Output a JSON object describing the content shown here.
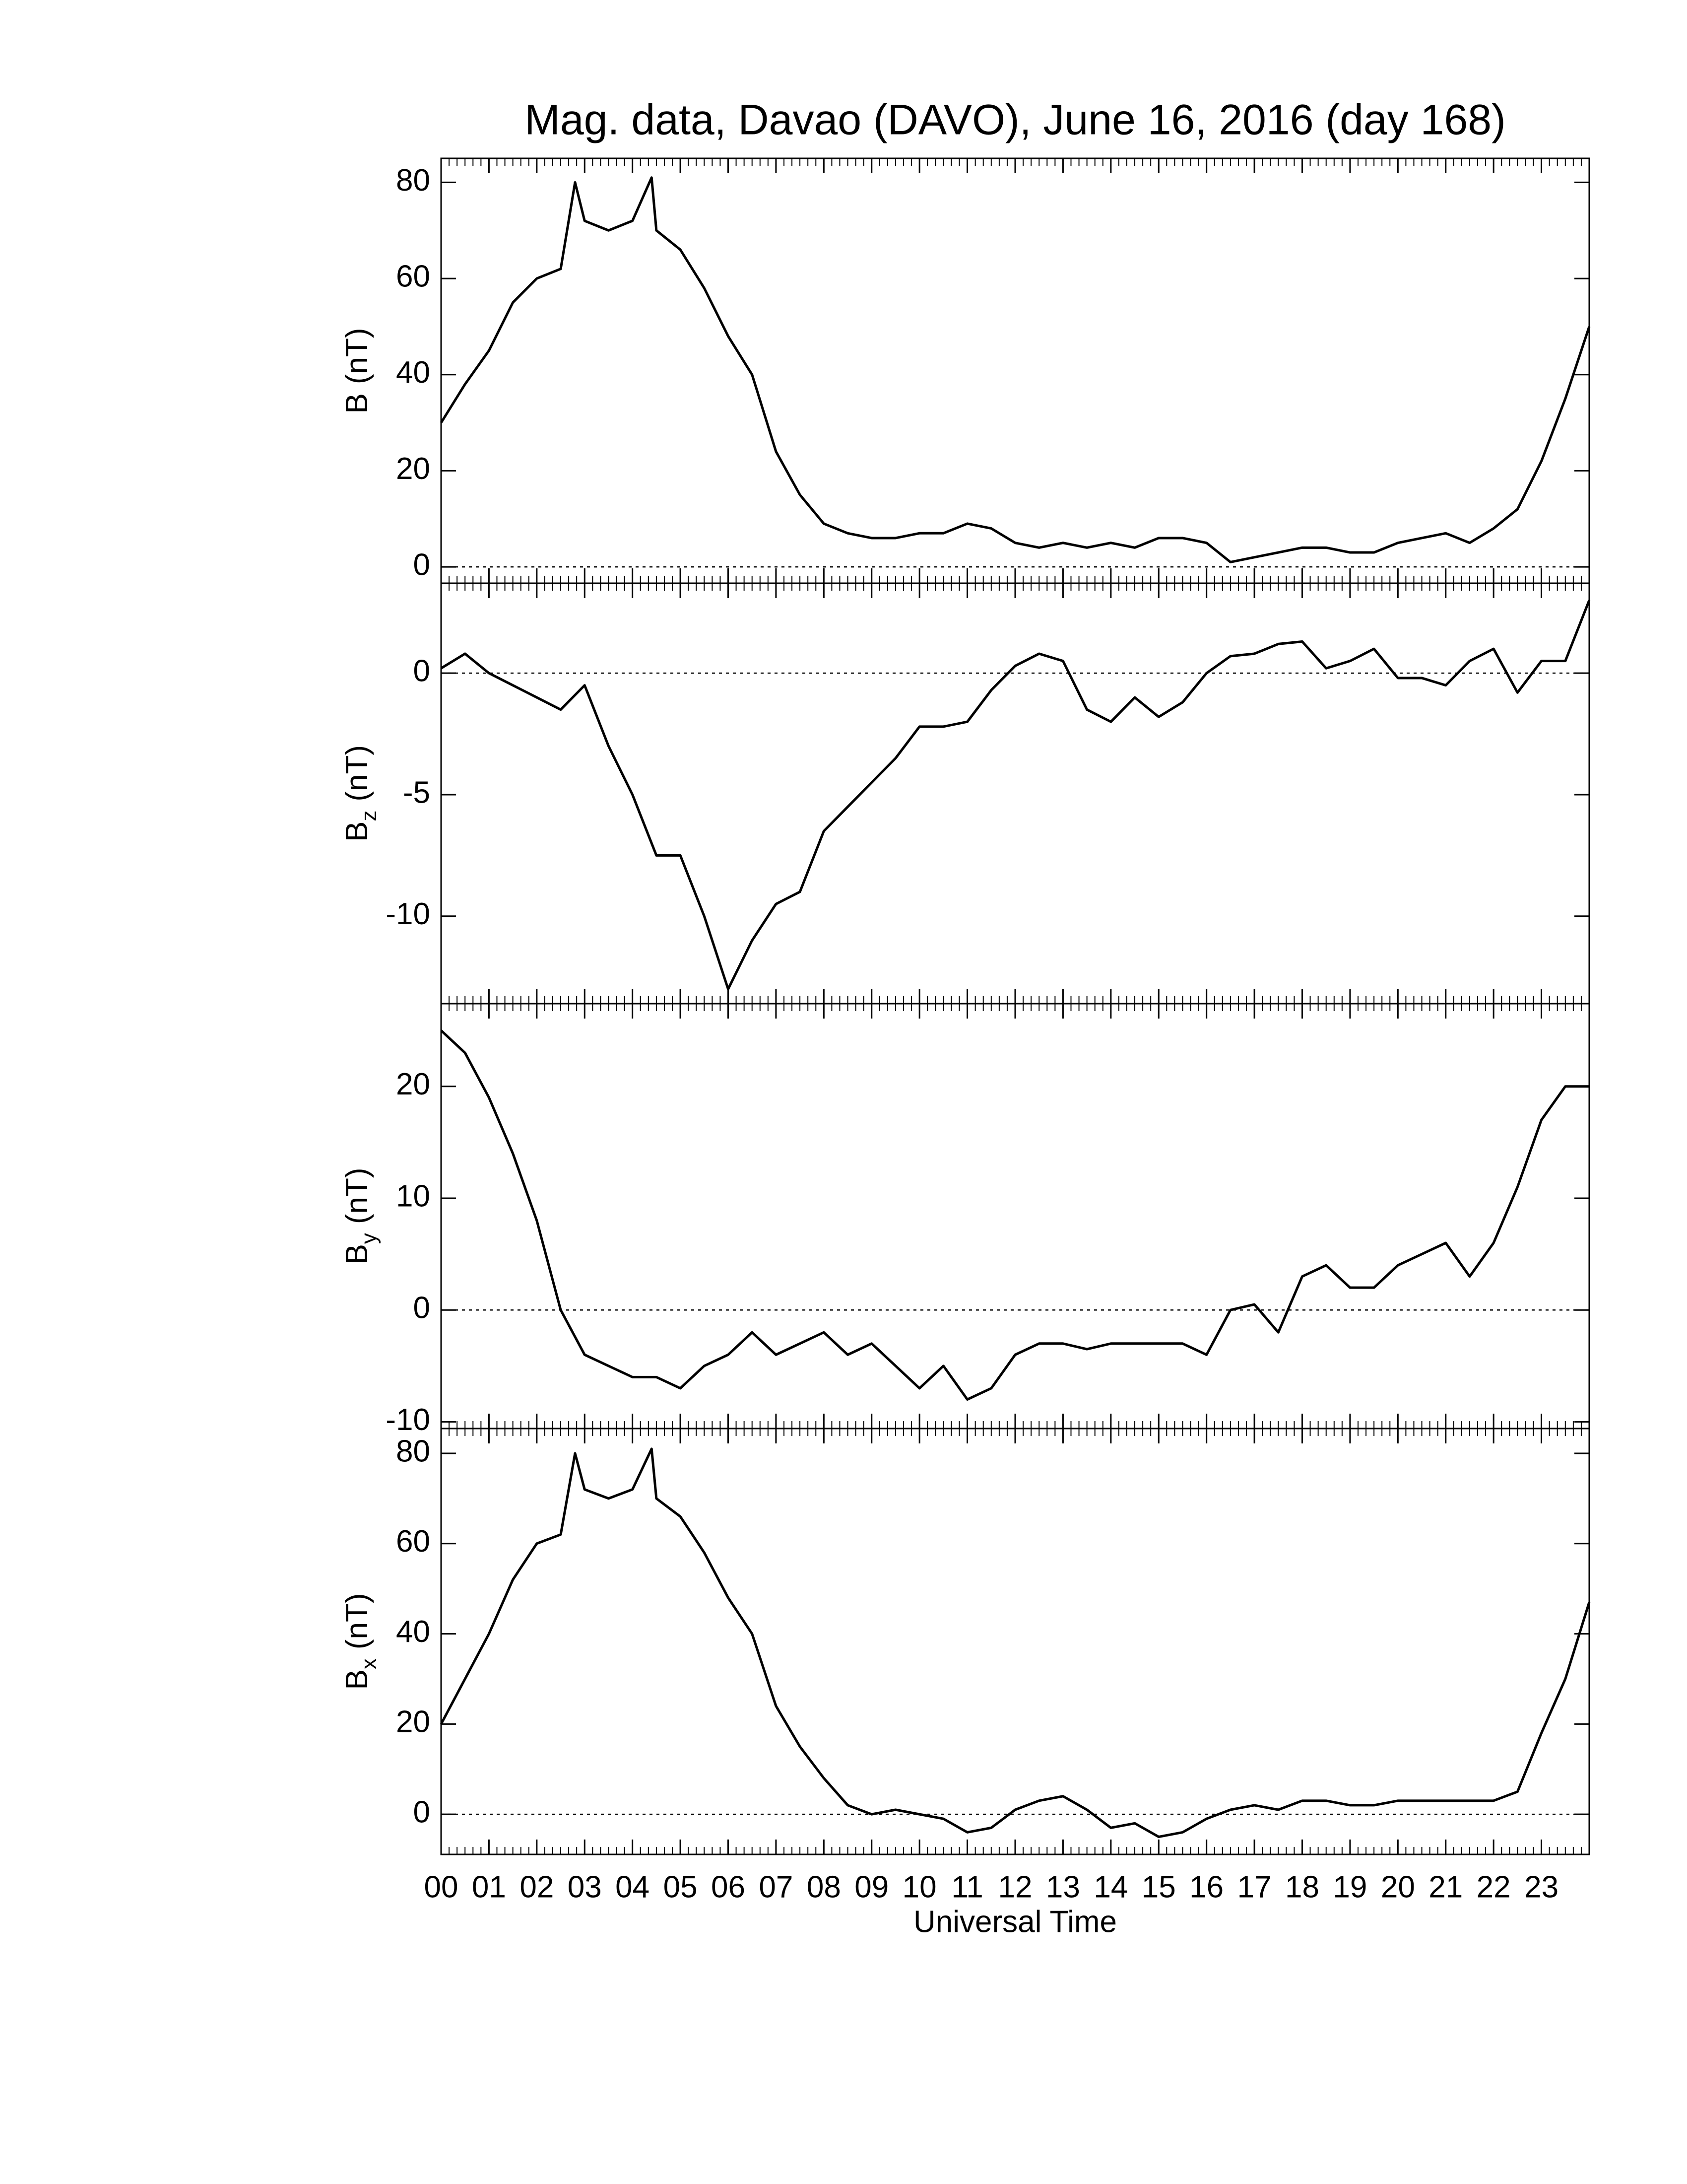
{
  "chart_data": [
    {
      "type": "line",
      "title": "Mag. data, Davao (DAVO), June 16, 2016 (day 168)",
      "ylabel": "B",
      "ylabel_unit": "(nT)",
      "color": "#000000",
      "refline": 0,
      "xlim": [
        0,
        24
      ],
      "ylim": [
        -3.4,
        85
      ],
      "yticks": [
        0,
        20,
        40,
        60,
        80
      ],
      "x": [
        0,
        0.5,
        1,
        1.5,
        2,
        2.5,
        2.8,
        3,
        3.5,
        4,
        4.4,
        4.5,
        5,
        5.5,
        6,
        6.5,
        7,
        7.5,
        8,
        8.5,
        9,
        9.5,
        10,
        10.5,
        11,
        11.5,
        12,
        12.5,
        13,
        13.5,
        14,
        14.5,
        15,
        15.5,
        16,
        16.5,
        17,
        17.5,
        18,
        18.5,
        19,
        19.5,
        20,
        20.5,
        21,
        21.5,
        22,
        22.5,
        23,
        23.5,
        24
      ],
      "values": [
        30,
        38,
        45,
        55,
        60,
        62,
        80,
        72,
        70,
        72,
        81,
        70,
        66,
        58,
        48,
        40,
        24,
        15,
        9,
        7,
        6,
        6,
        7,
        7,
        9,
        8,
        5,
        4,
        5,
        4,
        5,
        4,
        6,
        6,
        5,
        1,
        2,
        3,
        4,
        4,
        3,
        3,
        5,
        6,
        7,
        5,
        8,
        12,
        22,
        35,
        50
      ]
    },
    {
      "type": "line",
      "ylabel": "B",
      "ylabel_sub": "z",
      "ylabel_unit": "(nT)",
      "color": "#000000",
      "refline": 0,
      "xlim": [
        0,
        24
      ],
      "ylim": [
        -13.6,
        3.7
      ],
      "yticks": [
        -10,
        -5,
        0
      ],
      "x": [
        0,
        0.5,
        1,
        1.5,
        2,
        2.5,
        3,
        3.5,
        4,
        4.5,
        5,
        5.5,
        6,
        6.5,
        7,
        7.5,
        8,
        8.5,
        9,
        9.5,
        10,
        10.5,
        11,
        11.5,
        12,
        12.5,
        13,
        13.5,
        14,
        14.5,
        15,
        15.5,
        16,
        16.5,
        17,
        17.5,
        18,
        18.5,
        19,
        19.5,
        20,
        20.5,
        21,
        21.5,
        22,
        22.5,
        23,
        23.5,
        24
      ],
      "values": [
        0.2,
        0.8,
        0,
        -0.5,
        -1,
        -1.5,
        -0.5,
        -3,
        -5,
        -7.5,
        -7.5,
        -10,
        -13,
        -11,
        -9.5,
        -9,
        -6.5,
        -5.5,
        -4.5,
        -3.5,
        -2.2,
        -2.2,
        -2,
        -0.7,
        0.3,
        0.8,
        0.5,
        -1.5,
        -2,
        -1,
        -1.8,
        -1.2,
        0,
        0.7,
        0.8,
        1.2,
        1.3,
        0.2,
        0.5,
        1,
        -0.2,
        -0.2,
        -0.5,
        0.5,
        1,
        -0.8,
        0.5,
        0.5,
        3
      ]
    },
    {
      "type": "line",
      "ylabel": "B",
      "ylabel_sub": "y",
      "ylabel_unit": "(nT)",
      "color": "#000000",
      "refline": 0,
      "xlim": [
        0,
        24
      ],
      "ylim": [
        -10.6,
        27.4
      ],
      "yticks": [
        -10,
        0,
        10,
        20
      ],
      "x": [
        0,
        0.5,
        1,
        1.5,
        2,
        2.5,
        3,
        3.5,
        4,
        4.5,
        5,
        5.5,
        6,
        6.5,
        7,
        7.5,
        8,
        8.5,
        9,
        9.5,
        10,
        10.5,
        11,
        11.5,
        12,
        12.5,
        13,
        13.5,
        14,
        14.5,
        15,
        15.5,
        16,
        16.5,
        17,
        17.5,
        18,
        18.5,
        19,
        19.5,
        20,
        20.5,
        21,
        21.5,
        22,
        22.5,
        23,
        23.5,
        24
      ],
      "values": [
        25,
        23,
        19,
        14,
        8,
        0,
        -4,
        -5,
        -6,
        -6,
        -7,
        -5,
        -4,
        -2,
        -4,
        -3,
        -2,
        -4,
        -3,
        -5,
        -7,
        -5,
        -8,
        -7,
        -4,
        -3,
        -3,
        -3.5,
        -3,
        -3,
        -3,
        -3,
        -4,
        0,
        0.5,
        -2,
        3,
        4,
        2,
        2,
        4,
        5,
        6,
        3,
        6,
        11,
        17,
        20,
        20
      ]
    },
    {
      "type": "line",
      "ylabel": "B",
      "ylabel_sub": "x",
      "ylabel_unit": "(nT)",
      "xlabel": "Universal Time",
      "color": "#000000",
      "refline": 0,
      "xlim": [
        0,
        24
      ],
      "ylim": [
        -8.9,
        85.5
      ],
      "yticks": [
        0,
        20,
        40,
        60,
        80
      ],
      "xticks": [
        {
          "value": 0,
          "label": "00"
        },
        {
          "value": 1,
          "label": "01"
        },
        {
          "value": 2,
          "label": "02"
        },
        {
          "value": 3,
          "label": "03"
        },
        {
          "value": 4,
          "label": "04"
        },
        {
          "value": 5,
          "label": "05"
        },
        {
          "value": 6,
          "label": "06"
        },
        {
          "value": 7,
          "label": "07"
        },
        {
          "value": 8,
          "label": "08"
        },
        {
          "value": 9,
          "label": "09"
        },
        {
          "value": 10,
          "label": "10"
        },
        {
          "value": 11,
          "label": "11"
        },
        {
          "value": 12,
          "label": "12"
        },
        {
          "value": 13,
          "label": "13"
        },
        {
          "value": 14,
          "label": "14"
        },
        {
          "value": 15,
          "label": "15"
        },
        {
          "value": 16,
          "label": "16"
        },
        {
          "value": 17,
          "label": "17"
        },
        {
          "value": 18,
          "label": "18"
        },
        {
          "value": 19,
          "label": "19"
        },
        {
          "value": 20,
          "label": "20"
        },
        {
          "value": 21,
          "label": "21"
        },
        {
          "value": 22,
          "label": "22"
        },
        {
          "value": 23,
          "label": "23"
        }
      ],
      "x": [
        0,
        0.5,
        1,
        1.5,
        2,
        2.5,
        2.8,
        3,
        3.5,
        4,
        4.4,
        4.5,
        5,
        5.5,
        6,
        6.5,
        7,
        7.5,
        8,
        8.5,
        9,
        9.5,
        10,
        10.5,
        11,
        11.5,
        12,
        12.5,
        13,
        13.5,
        14,
        14.5,
        15,
        15.5,
        16,
        16.5,
        17,
        17.5,
        18,
        18.5,
        19,
        19.5,
        20,
        20.5,
        21,
        21.5,
        22,
        22.5,
        23,
        23.5,
        24
      ],
      "values": [
        20,
        30,
        40,
        52,
        60,
        62,
        80,
        72,
        70,
        72,
        81,
        70,
        66,
        58,
        48,
        40,
        24,
        15,
        8,
        2,
        0,
        1,
        0,
        -1,
        -4,
        -3,
        1,
        3,
        4,
        1,
        -3,
        -2,
        -5,
        -4,
        -1,
        1,
        2,
        1,
        3,
        3,
        2,
        2,
        3,
        3,
        3,
        3,
        3,
        5,
        18,
        30,
        47
      ]
    }
  ]
}
